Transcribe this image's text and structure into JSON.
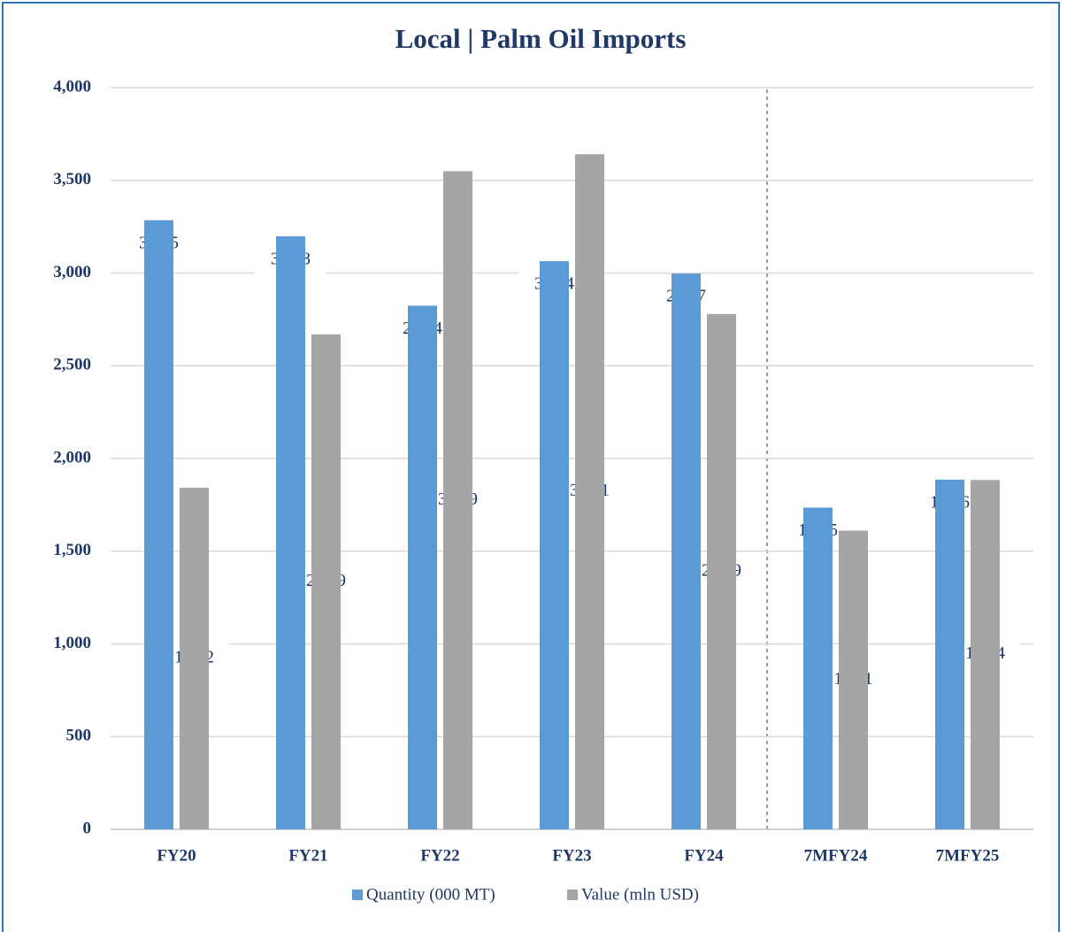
{
  "chart_data": {
    "type": "bar",
    "title": "Local | Palm Oil Imports",
    "categories": [
      "FY20",
      "FY21",
      "FY22",
      "FY23",
      "FY24",
      "7MFY24",
      "7MFY25"
    ],
    "series": [
      {
        "name": "Quantity (000 MT)",
        "color": "#5b9bd5",
        "values": [
          3285,
          3198,
          2824,
          3064,
          2997,
          1735,
          1886
        ],
        "value_labels": [
          "3,285",
          "3,198",
          "2,824",
          "3,064",
          "2,997",
          "1,735",
          "1,886"
        ]
      },
      {
        "name": "Value (mln USD)",
        "color": "#a5a5a5",
        "values": [
          1842,
          2669,
          3549,
          3641,
          2779,
          1611,
          1884
        ],
        "value_labels": [
          "1,842",
          "2,669",
          "3,549",
          "3,641",
          "2,779",
          "1,611",
          "1,884"
        ]
      }
    ],
    "ylim": [
      0,
      4000
    ],
    "yticks": [
      0,
      500,
      {
        "value": 1000,
        "label": "1,000"
      },
      {
        "value": 1500,
        "label": "1,500"
      },
      {
        "value": 2000,
        "label": "2,000"
      },
      {
        "value": 2500,
        "label": "2,500"
      },
      {
        "value": 3000,
        "label": "3,000"
      },
      {
        "value": 3500,
        "label": "3,500"
      },
      {
        "value": 4000,
        "label": "4,000"
      }
    ],
    "grid": true,
    "legend": "bottom"
  }
}
